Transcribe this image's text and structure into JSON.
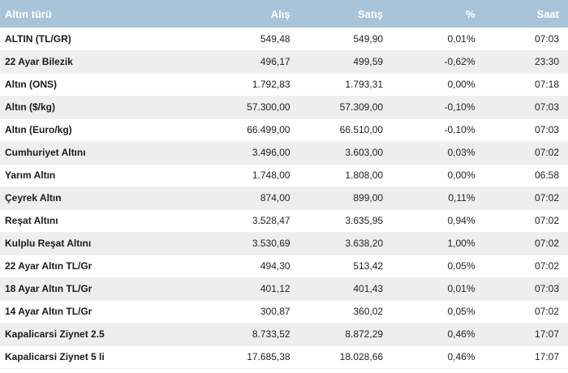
{
  "table": {
    "headers": {
      "name": "Altın türü",
      "buy": "Alış",
      "sell": "Satış",
      "pct": "%",
      "time": "Saat"
    },
    "rows": [
      {
        "name": "ALTIN (TL/GR)",
        "buy": "549,48",
        "sell": "549,90",
        "pct": "0,01%",
        "time": "07:03"
      },
      {
        "name": "22 Ayar Bilezik",
        "buy": "496,17",
        "sell": "499,59",
        "pct": "-0,62%",
        "time": "23:30"
      },
      {
        "name": "Altın (ONS)",
        "buy": "1.792,83",
        "sell": "1.793,31",
        "pct": "0,00%",
        "time": "07:18"
      },
      {
        "name": "Altın ($/kg)",
        "buy": "57.300,00",
        "sell": "57.309,00",
        "pct": "-0,10%",
        "time": "07:03"
      },
      {
        "name": "Altın (Euro/kg)",
        "buy": "66.499,00",
        "sell": "66.510,00",
        "pct": "-0,10%",
        "time": "07:03"
      },
      {
        "name": "Cumhuriyet Altını",
        "buy": "3.496,00",
        "sell": "3.603,00",
        "pct": "0,03%",
        "time": "07:02"
      },
      {
        "name": "Yarım Altın",
        "buy": "1.748,00",
        "sell": "1.808,00",
        "pct": "0,00%",
        "time": "06:58"
      },
      {
        "name": "Çeyrek Altın",
        "buy": "874,00",
        "sell": "899,00",
        "pct": "0,11%",
        "time": "07:02"
      },
      {
        "name": "Reşat Altını",
        "buy": "3.528,47",
        "sell": "3.635,95",
        "pct": "0,94%",
        "time": "07:02"
      },
      {
        "name": "Kulplu Reşat Altını",
        "buy": "3.530,69",
        "sell": "3.638,20",
        "pct": "1,00%",
        "time": "07:02"
      },
      {
        "name": "22 Ayar Altın TL/Gr",
        "buy": "494,30",
        "sell": "513,42",
        "pct": "0,05%",
        "time": "07:02"
      },
      {
        "name": "18 Ayar Altın TL/Gr",
        "buy": "401,12",
        "sell": "401,43",
        "pct": "0,01%",
        "time": "07:03"
      },
      {
        "name": "14 Ayar Altın TL/Gr",
        "buy": "300,87",
        "sell": "360,02",
        "pct": "0,05%",
        "time": "07:02"
      },
      {
        "name": "Kapalicarsi Ziynet 2.5",
        "buy": "8.733,52",
        "sell": "8.872,29",
        "pct": "0,46%",
        "time": "17:07"
      },
      {
        "name": "Kapalicarsi Ziynet 5 li",
        "buy": "17.685,38",
        "sell": "18.028,66",
        "pct": "0,46%",
        "time": "17:07"
      }
    ]
  },
  "colors": {
    "header_bg": "#a9c3d9",
    "header_text": "#ffffff",
    "row_alt_bg": "#eeeeee"
  }
}
